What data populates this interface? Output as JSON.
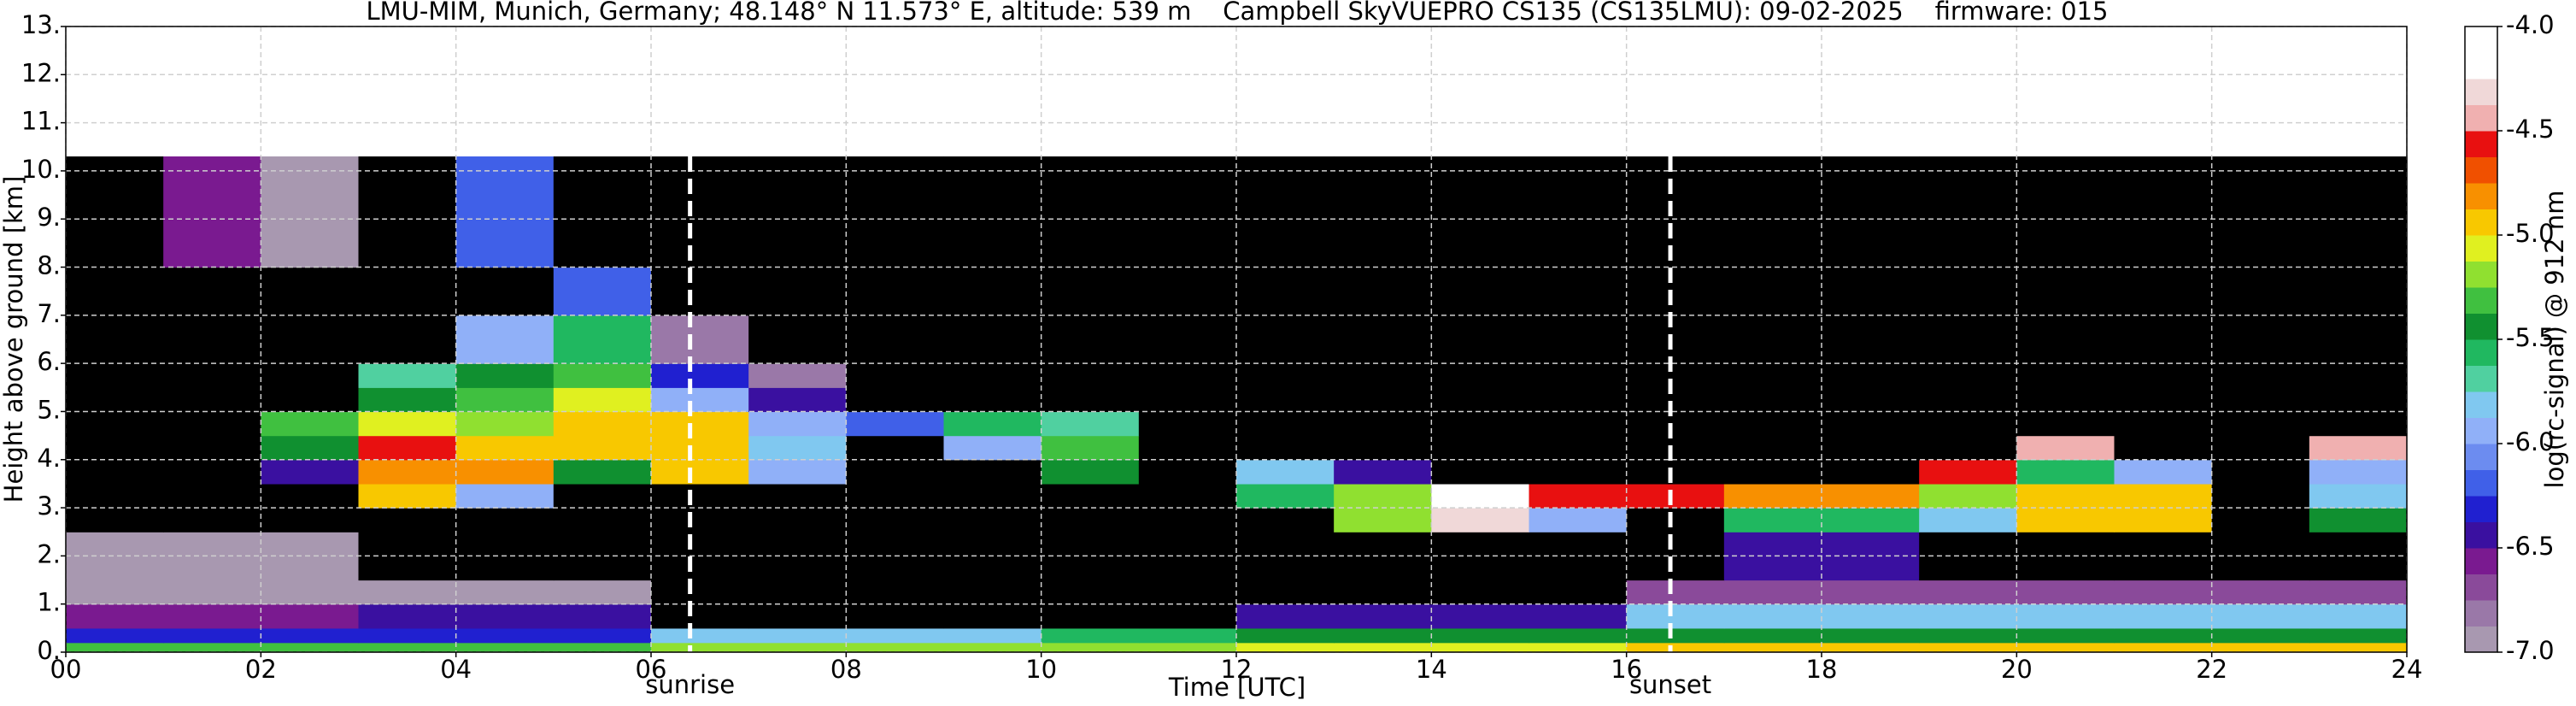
{
  "chart_data": {
    "type": "heatmap",
    "title": "LMU-MIM, Munich, Germany; 48.148° N 11.573° E, altitude: 539 m    Campbell SkyVUEPRO CS135 (CS135LMU): 09-02-2025    firmware: 015",
    "x_label": "Time [UTC]",
    "y_label": "Height above ground [km]",
    "colorbar_label": "log(rc-signal) @ 912 nm",
    "xlim": [
      0,
      24
    ],
    "ylim": [
      0,
      13
    ],
    "xticks": [
      {
        "value": 0,
        "label": "00"
      },
      {
        "value": 2,
        "label": "02"
      },
      {
        "value": 4,
        "label": "04"
      },
      {
        "value": 6,
        "label": "06"
      },
      {
        "value": 8,
        "label": "08"
      },
      {
        "value": 10,
        "label": "10"
      },
      {
        "value": 12,
        "label": "12"
      },
      {
        "value": 14,
        "label": "14"
      },
      {
        "value": 16,
        "label": "16"
      },
      {
        "value": 18,
        "label": "18"
      },
      {
        "value": 20,
        "label": "20"
      },
      {
        "value": 22,
        "label": "22"
      },
      {
        "value": 24,
        "label": "24"
      }
    ],
    "yticks": [
      {
        "value": 0,
        "label": "0."
      },
      {
        "value": 1,
        "label": "1."
      },
      {
        "value": 2,
        "label": "2."
      },
      {
        "value": 3,
        "label": "3."
      },
      {
        "value": 4,
        "label": "4."
      },
      {
        "value": 5,
        "label": "5."
      },
      {
        "value": 6,
        "label": "6."
      },
      {
        "value": 7,
        "label": "7."
      },
      {
        "value": 8,
        "label": "8."
      },
      {
        "value": 9,
        "label": "9."
      },
      {
        "value": 10,
        "label": "10."
      },
      {
        "value": 11,
        "label": "11."
      },
      {
        "value": 12,
        "label": "12."
      },
      {
        "value": 13,
        "label": "13."
      }
    ],
    "clim": [
      -7,
      -4
    ],
    "cticks": [
      {
        "value": -7,
        "label": "-7.0"
      },
      {
        "value": -6.5,
        "label": "-6.5"
      },
      {
        "value": -6,
        "label": "-6.0"
      },
      {
        "value": -5.5,
        "label": "-5.5"
      },
      {
        "value": -5,
        "label": "-5.0"
      },
      {
        "value": -4.5,
        "label": "-4.5"
      },
      {
        "value": -4,
        "label": "-4.0"
      }
    ],
    "colors": [
      "#a898b0",
      "#9a78a8",
      "#8a4a9a",
      "#7a1a90",
      "#3a10a0",
      "#2020d0",
      "#4060e8",
      "#6c8cf0",
      "#90b0f8",
      "#80c8f0",
      "#50d0a0",
      "#20b860",
      "#109030",
      "#40c040",
      "#90e030",
      "#e0f020",
      "#f8c800",
      "#f89000",
      "#f05000",
      "#e81010",
      "#f0b0b0",
      "#f0d8d8",
      "#ffffff",
      "#ffffff"
    ],
    "under_color": "#000000",
    "grid": true,
    "annotations": [
      {
        "x": 6.4,
        "label": "sunrise"
      },
      {
        "x": 16.45,
        "label": "sunset"
      }
    ],
    "x_bins": [
      0,
      1,
      2,
      3,
      4,
      5,
      6,
      7,
      8,
      9,
      10,
      11,
      12,
      13,
      14,
      15,
      16,
      17,
      18,
      19,
      20,
      21,
      22,
      23,
      24
    ],
    "y_bins": [
      0,
      0.2,
      0.5,
      1,
      1.5,
      2.5,
      3,
      3.5,
      4,
      4.5,
      5,
      5.5,
      6,
      7,
      8,
      10.3
    ],
    "values": [
      [
        -5.3,
        -5.3,
        -5.3,
        -5.3,
        -5.3,
        -5.3,
        -5.2,
        -5.2,
        -5.2,
        -5.2,
        -5.2,
        -5.2,
        -5.1,
        -5.1,
        -5.1,
        -5.1,
        -5.0,
        -5.0,
        -5.0,
        -5.0,
        -5.0,
        -5.0,
        -5.0,
        -5.0
      ],
      [
        -6.3,
        -6.3,
        -6.3,
        -6.3,
        -6.3,
        -6.3,
        -5.8,
        -5.8,
        -5.8,
        -5.8,
        -5.6,
        -5.6,
        -5.5,
        -5.5,
        -5.5,
        -5.5,
        -5.4,
        -5.4,
        -5.4,
        -5.4,
        -5.4,
        -5.4,
        -5.4,
        -5.4
      ],
      [
        -6.6,
        -6.6,
        -6.6,
        -6.5,
        -6.5,
        -6.5,
        -7.3,
        -7.3,
        -7.3,
        -7.3,
        -7.3,
        -7.3,
        -6.5,
        -6.5,
        -6.5,
        -6.5,
        -5.8,
        -5.8,
        -5.8,
        -5.8,
        -5.8,
        -5.8,
        -5.8,
        -5.8
      ],
      [
        -6.9,
        -6.9,
        -6.9,
        -6.9,
        -6.9,
        -6.9,
        -7.3,
        -7.3,
        -7.3,
        -7.3,
        -7.3,
        -7.3,
        -7.3,
        -7.3,
        -7.3,
        -7.3,
        -6.7,
        -6.7,
        -6.7,
        -6.7,
        -6.7,
        -6.7,
        -6.7,
        -6.7
      ],
      [
        -7.0,
        -7.0,
        -7.0,
        -7.3,
        -7.3,
        -7.3,
        -7.3,
        -7.3,
        -7.3,
        -7.3,
        -7.3,
        -7.3,
        -7.3,
        -7.3,
        -7.3,
        -7.3,
        -7.1,
        -6.4,
        -6.4,
        -7.1,
        -7.1,
        -7.1,
        -7.1,
        -7.1
      ],
      [
        -7.3,
        -7.3,
        -7.3,
        -7.3,
        -7.3,
        -7.3,
        -7.3,
        -7.3,
        -7.3,
        -7.3,
        -7.3,
        -7.3,
        -7.3,
        -5.2,
        -4.3,
        -6.0,
        -7.3,
        -5.6,
        -5.6,
        -5.8,
        -4.9,
        -4.9,
        -7.3,
        -5.4
      ],
      [
        -7.3,
        -7.3,
        -7.3,
        -5.0,
        -6.0,
        -7.3,
        -7.3,
        -7.3,
        -7.3,
        -7.3,
        -7.3,
        -7.3,
        -5.6,
        -5.2,
        -4.2,
        -4.6,
        -4.6,
        -4.8,
        -4.8,
        -5.2,
        -4.9,
        -5.0,
        -7.3,
        -5.8
      ],
      [
        -7.3,
        -7.3,
        -6.5,
        -4.8,
        -4.8,
        -5.5,
        -4.9,
        -5.9,
        -7.3,
        -7.3,
        -5.5,
        -7.3,
        -5.8,
        -6.5,
        -7.3,
        -7.3,
        -7.3,
        -7.3,
        -7.3,
        -4.6,
        -5.6,
        -5.9,
        -7.3,
        -6.0
      ],
      [
        -7.3,
        -7.3,
        -5.4,
        -4.6,
        -5.0,
        -4.9,
        -5.0,
        -5.8,
        -7.3,
        -6.0,
        -5.3,
        -7.3,
        -7.3,
        -7.3,
        -7.3,
        -7.3,
        -7.3,
        -7.3,
        -7.3,
        -7.3,
        -4.5,
        -7.3,
        -7.3,
        -4.5
      ],
      [
        -7.3,
        -7.3,
        -5.3,
        -5.1,
        -5.2,
        -5.0,
        -5.0,
        -5.9,
        -6.2,
        -5.6,
        -5.7,
        -7.3,
        -7.3,
        -7.3,
        -7.3,
        -7.3,
        -7.3,
        -7.3,
        -7.3,
        -7.3,
        -7.3,
        -7.3,
        -7.3,
        -7.3
      ],
      [
        -7.3,
        -7.3,
        -7.3,
        -5.4,
        -5.3,
        -5.1,
        -6.0,
        -6.5,
        -7.3,
        -7.3,
        -7.3,
        -7.3,
        -7.3,
        -7.3,
        -7.3,
        -7.3,
        -7.3,
        -7.3,
        -7.3,
        -7.3,
        -7.3,
        -7.3,
        -7.3,
        -7.3
      ],
      [
        -7.3,
        -7.3,
        -7.3,
        -5.7,
        -5.5,
        -5.3,
        -6.3,
        -6.8,
        -7.3,
        -7.3,
        -7.3,
        -7.3,
        -7.3,
        -7.3,
        -7.3,
        -7.3,
        -7.3,
        -7.3,
        -7.3,
        -7.3,
        -7.3,
        -7.3,
        -7.3,
        -7.3
      ],
      [
        -7.3,
        -7.3,
        -7.3,
        -7.3,
        -5.9,
        -5.6,
        -6.8,
        -7.3,
        -7.3,
        -7.3,
        -7.3,
        -7.3,
        -7.3,
        -7.3,
        -7.3,
        -7.3,
        -7.3,
        -7.3,
        -7.3,
        -7.3,
        -7.3,
        -7.3,
        -7.3,
        -7.3
      ],
      [
        -7.3,
        -7.3,
        -7.3,
        -7.3,
        -7.3,
        -6.2,
        -7.3,
        -7.3,
        -7.3,
        -7.3,
        -7.3,
        -7.3,
        -7.3,
        -7.3,
        -7.3,
        -7.3,
        -7.3,
        -7.3,
        -7.3,
        -7.3,
        -7.3,
        -7.3,
        -7.3,
        -7.3
      ],
      [
        -7.3,
        -6.6,
        -6.9,
        -7.3,
        -6.2,
        -7.3,
        -7.3,
        -7.3,
        -7.3,
        -7.3,
        -7.3,
        -7.3,
        -7.3,
        -7.3,
        -7.3,
        -7.3,
        -7.3,
        -7.3,
        -7.3,
        -7.3,
        -7.3,
        -7.3,
        -7.3,
        -7.3
      ]
    ]
  }
}
